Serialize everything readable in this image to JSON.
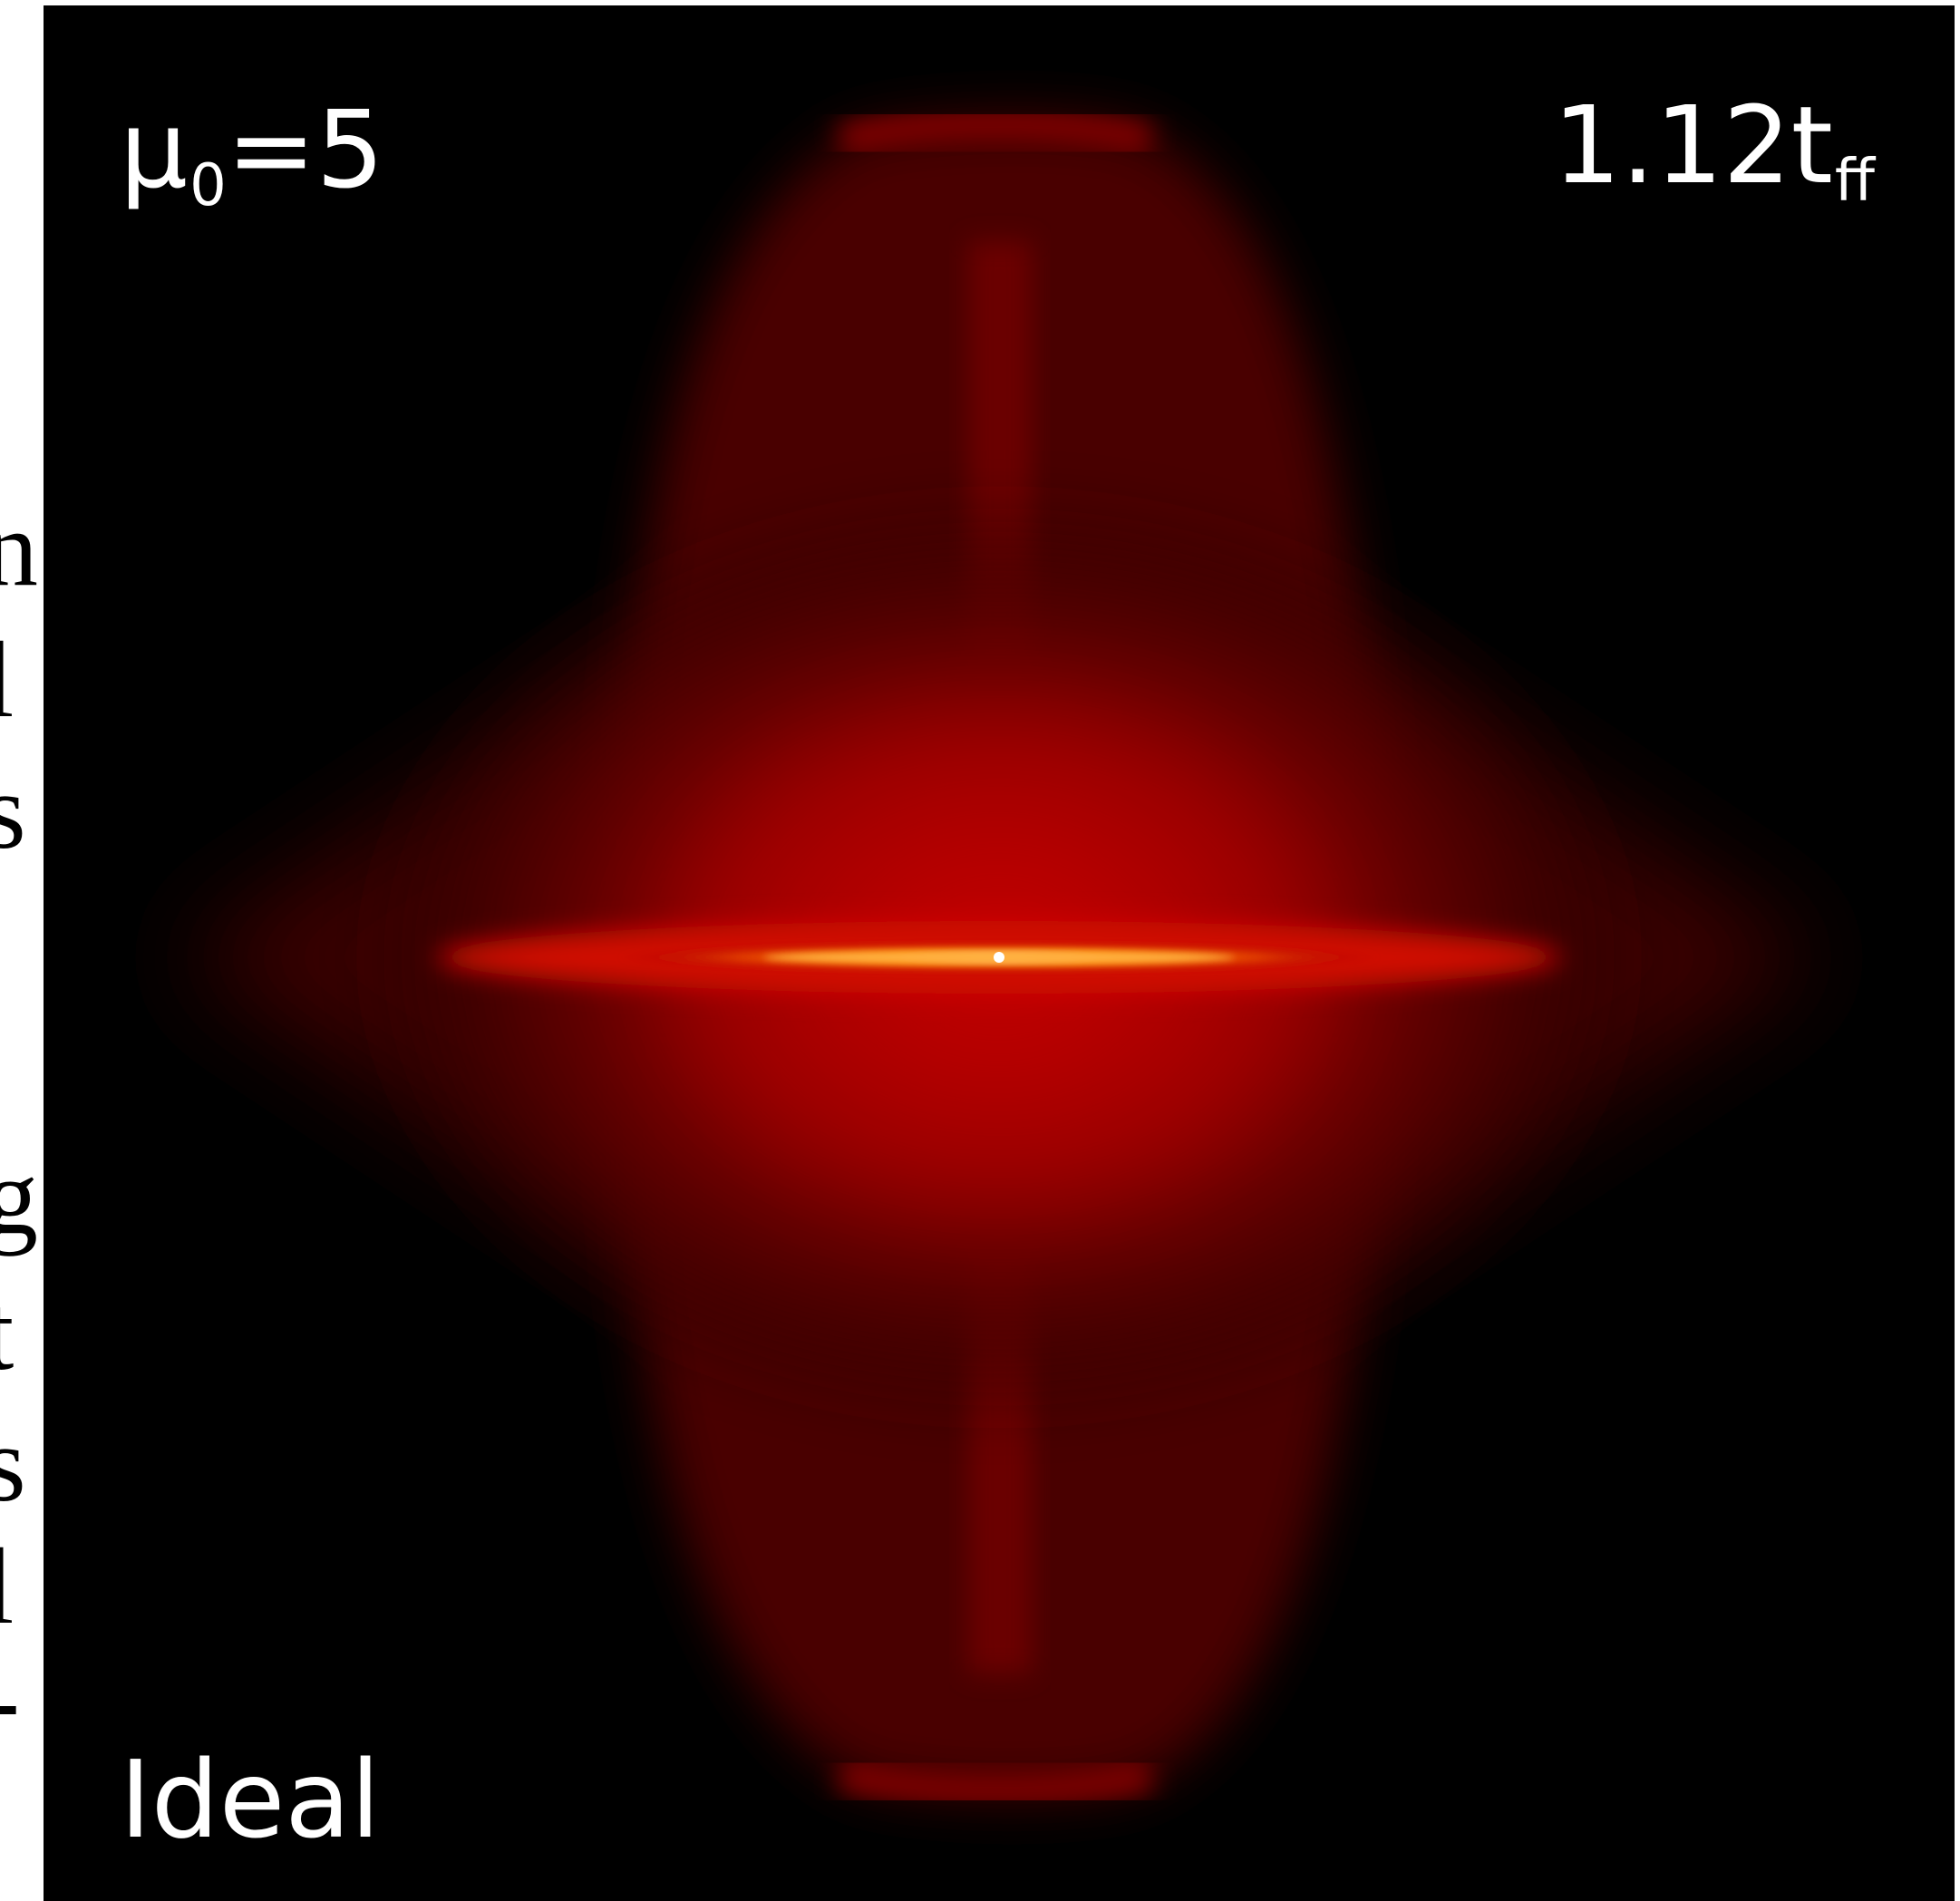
{
  "panel": {
    "background_color": "#000000",
    "colormap": [
      "#000000",
      "#3a0000",
      "#7a0000",
      "#b00000",
      "#ff6a00",
      "#ffc060",
      "#ffffff"
    ]
  },
  "labels": {
    "mu_symbol": "μ",
    "mu_subscript": "0",
    "mu_value": "=5",
    "time_value": "1.12t",
    "time_subscript": "ff",
    "model": "Ideal"
  },
  "edge_text": {
    "glyphs": [
      "n",
      "l",
      "s",
      "g",
      "t",
      "s",
      "l",
      "-"
    ]
  }
}
